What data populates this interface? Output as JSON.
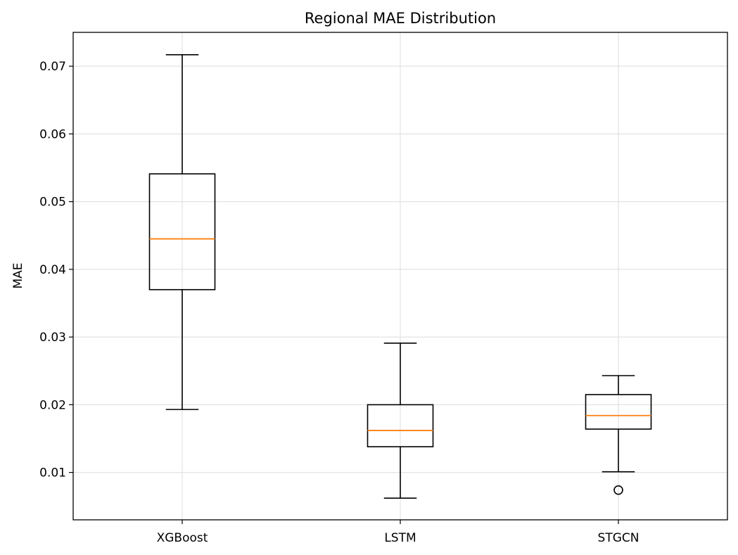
{
  "chart_data": {
    "type": "box",
    "title": "Regional MAE Distribution",
    "xlabel": "",
    "ylabel": "MAE",
    "ylim": [
      0.003,
      0.075
    ],
    "yticks": [
      0.01,
      0.02,
      0.03,
      0.04,
      0.05,
      0.06,
      0.07
    ],
    "ytick_labels": [
      "0.01",
      "0.02",
      "0.03",
      "0.04",
      "0.05",
      "0.06",
      "0.07"
    ],
    "grid": true,
    "categories": [
      "XGBoost",
      "LSTM",
      "STGCN"
    ],
    "boxes": [
      {
        "whisker_low": 0.0193,
        "q1": 0.037,
        "median": 0.0445,
        "q3": 0.0541,
        "whisker_high": 0.0717,
        "outliers": []
      },
      {
        "whisker_low": 0.0062,
        "q1": 0.0138,
        "median": 0.0162,
        "q3": 0.02,
        "whisker_high": 0.0291,
        "outliers": []
      },
      {
        "whisker_low": 0.0101,
        "q1": 0.0164,
        "median": 0.0184,
        "q3": 0.0215,
        "whisker_high": 0.0243,
        "outliers": [
          0.0074
        ]
      }
    ],
    "colors": {
      "box": "#000000",
      "median": "#ff7f0e",
      "grid": "#e3e3e3"
    }
  }
}
